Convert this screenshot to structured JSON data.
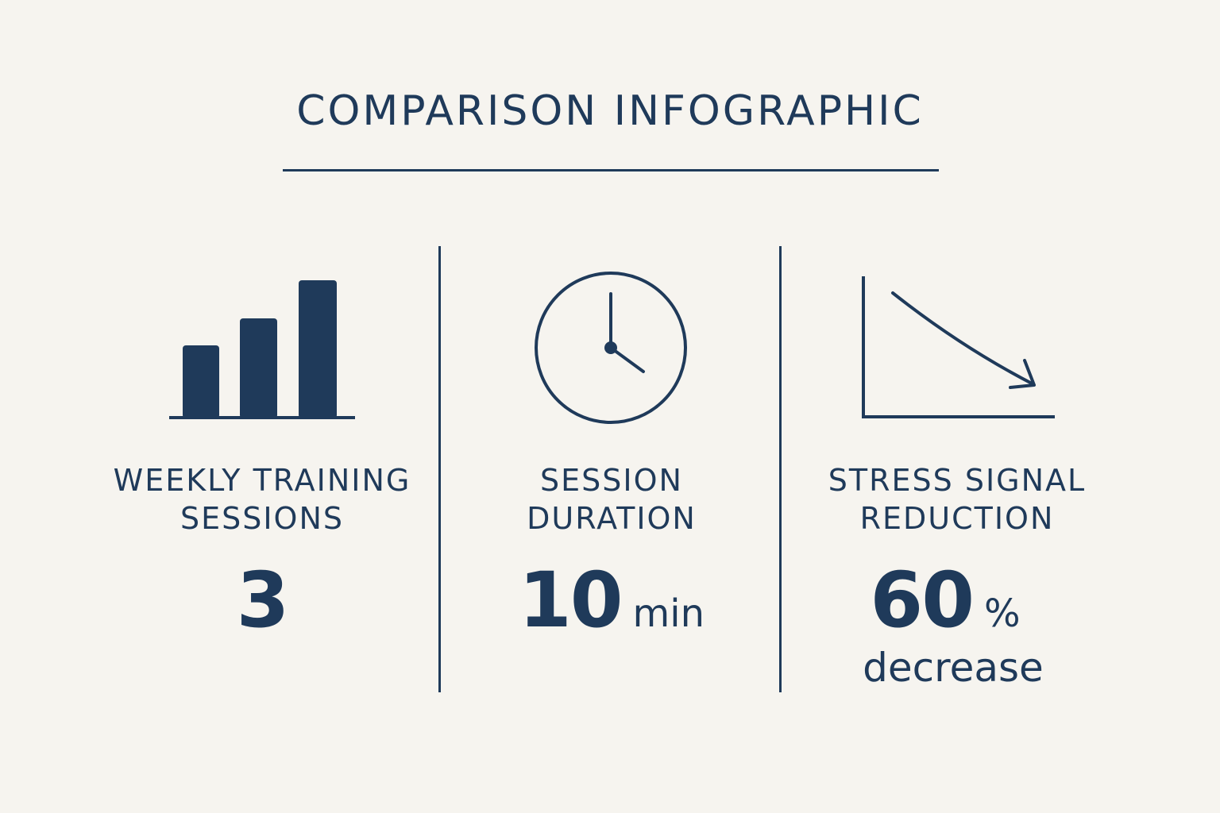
{
  "title": "COMPARISON INFOGRAPHIC",
  "colors": {
    "background": "#f6f4ef",
    "ink": "#1f3a5a"
  },
  "columns": [
    {
      "icon": "bar-chart-icon",
      "label_line1": "WEEKLY TRAINING",
      "label_line2": "SESSIONS",
      "value": "3",
      "unit": ""
    },
    {
      "icon": "clock-icon",
      "label_line1": "SESSION",
      "label_line2": "DURATION",
      "value": "10",
      "unit": "min"
    },
    {
      "icon": "downtrend-chart-icon",
      "label_line1": "STRESS SIGNAL",
      "label_line2": "REDUCTION",
      "value": "60",
      "unit": "%",
      "note": "decrease"
    }
  ]
}
